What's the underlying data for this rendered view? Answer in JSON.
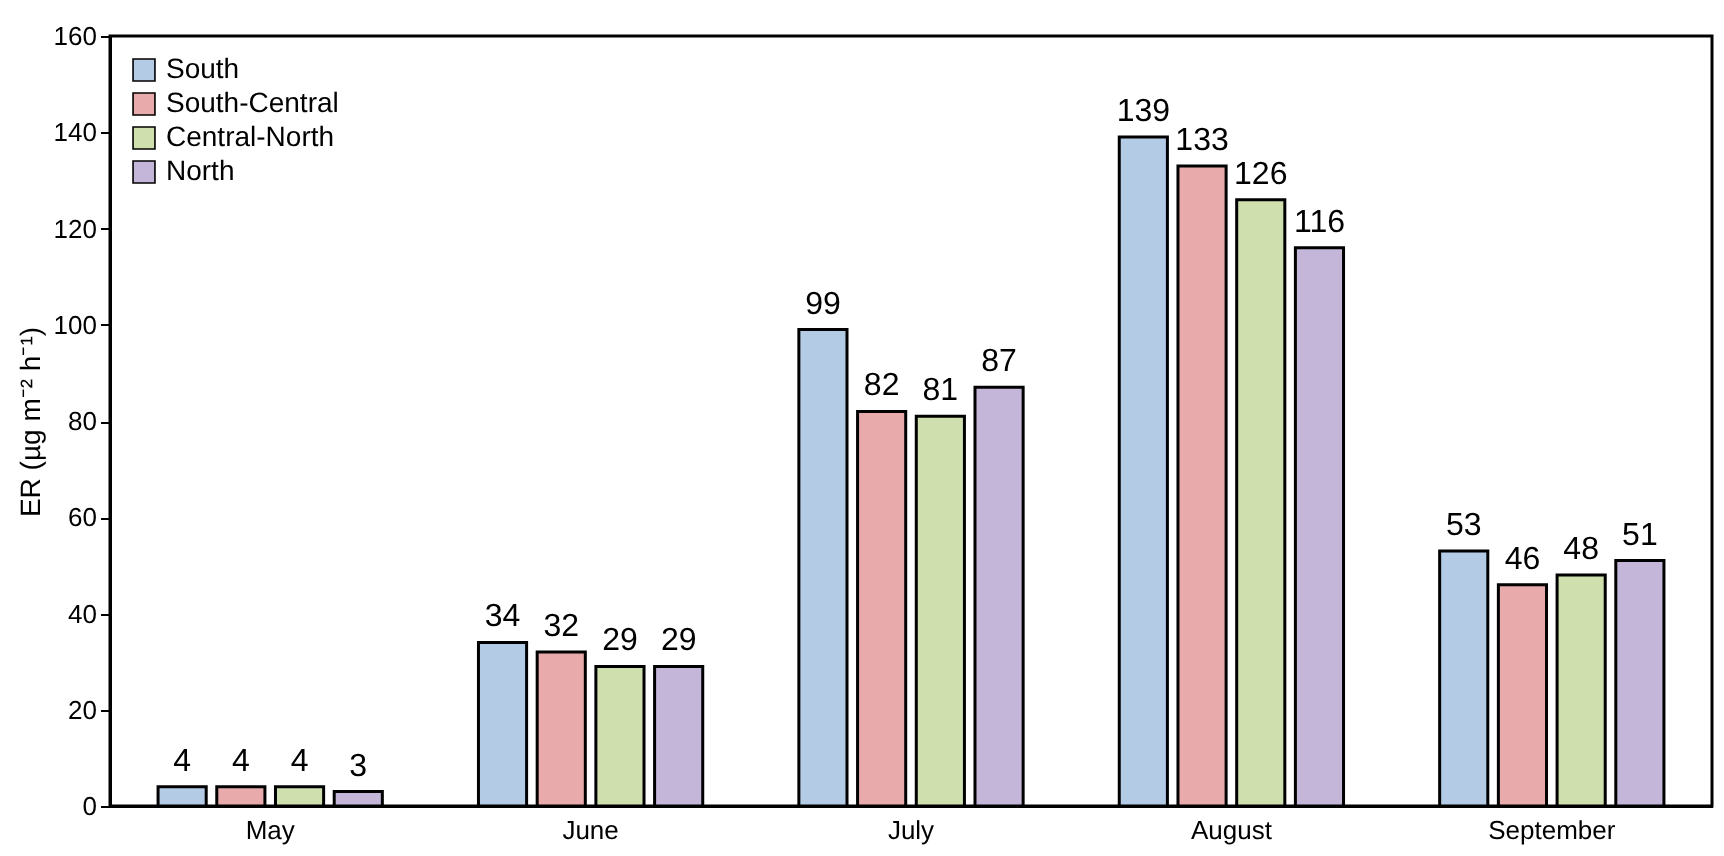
{
  "chart_data": {
    "type": "bar",
    "ylabel": "ER (µg m⁻² h⁻¹)",
    "categories": [
      "May",
      "June",
      "July",
      "August",
      "September"
    ],
    "series": [
      {
        "name": "South",
        "color": "#b4cbe6",
        "values": [
          4,
          34,
          99,
          139,
          53
        ]
      },
      {
        "name": "South-Central",
        "color": "#e8aaaa",
        "values": [
          4,
          32,
          82,
          133,
          46
        ]
      },
      {
        "name": "Central-North",
        "color": "#cfe0ae",
        "values": [
          4,
          29,
          81,
          126,
          48
        ]
      },
      {
        "name": "North",
        "color": "#c3b6d8",
        "values": [
          3,
          29,
          87,
          116,
          51
        ]
      }
    ],
    "ylim": [
      0,
      160
    ],
    "yticks": [
      0,
      20,
      40,
      60,
      80,
      100,
      120,
      140,
      160
    ],
    "data_labels": true,
    "legend": "top left",
    "grid": false
  }
}
